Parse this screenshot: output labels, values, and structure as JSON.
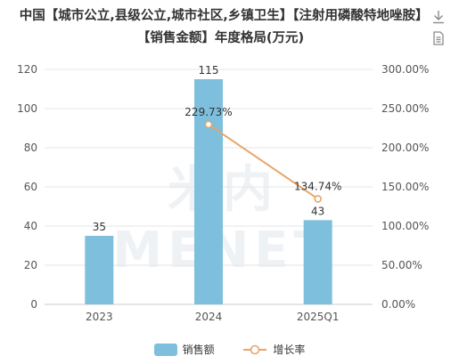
{
  "title": "中国【城市公立,县级公立,城市社区,乡镇卫生】【注射用磷酸特地唑胺】【销售金额】年度格局(万元)",
  "watermark": "米内MENET",
  "toolbar": {
    "download_icon": "download-icon",
    "data_view_icon": "document-icon"
  },
  "colors": {
    "bar": "#7dbfdc",
    "line": "#e6a66a",
    "grid": "#e6e6e6"
  },
  "chart_data": {
    "type": "bar",
    "categories": [
      "2023",
      "2024",
      "2025Q1"
    ],
    "series": [
      {
        "name": "销售额",
        "type": "bar",
        "axis": "left",
        "values": [
          35,
          115,
          43
        ],
        "labels": [
          "35",
          "115",
          "43"
        ]
      },
      {
        "name": "增长率",
        "type": "line",
        "axis": "right",
        "values": [
          null,
          229.73,
          134.74
        ],
        "labels": [
          "",
          "229.73%",
          "134.74%"
        ]
      }
    ],
    "y_left": {
      "min": 0,
      "max": 120,
      "ticks": [
        "0",
        "20",
        "40",
        "60",
        "80",
        "100",
        "120"
      ]
    },
    "y_right": {
      "min": 0,
      "max": 300,
      "ticks": [
        "0.00%",
        "50.00%",
        "100.00%",
        "150.00%",
        "200.00%",
        "250.00%",
        "300.00%"
      ]
    },
    "grid": true,
    "legend_position": "bottom"
  },
  "legend": [
    {
      "label": "销售额"
    },
    {
      "label": "增长率"
    }
  ]
}
